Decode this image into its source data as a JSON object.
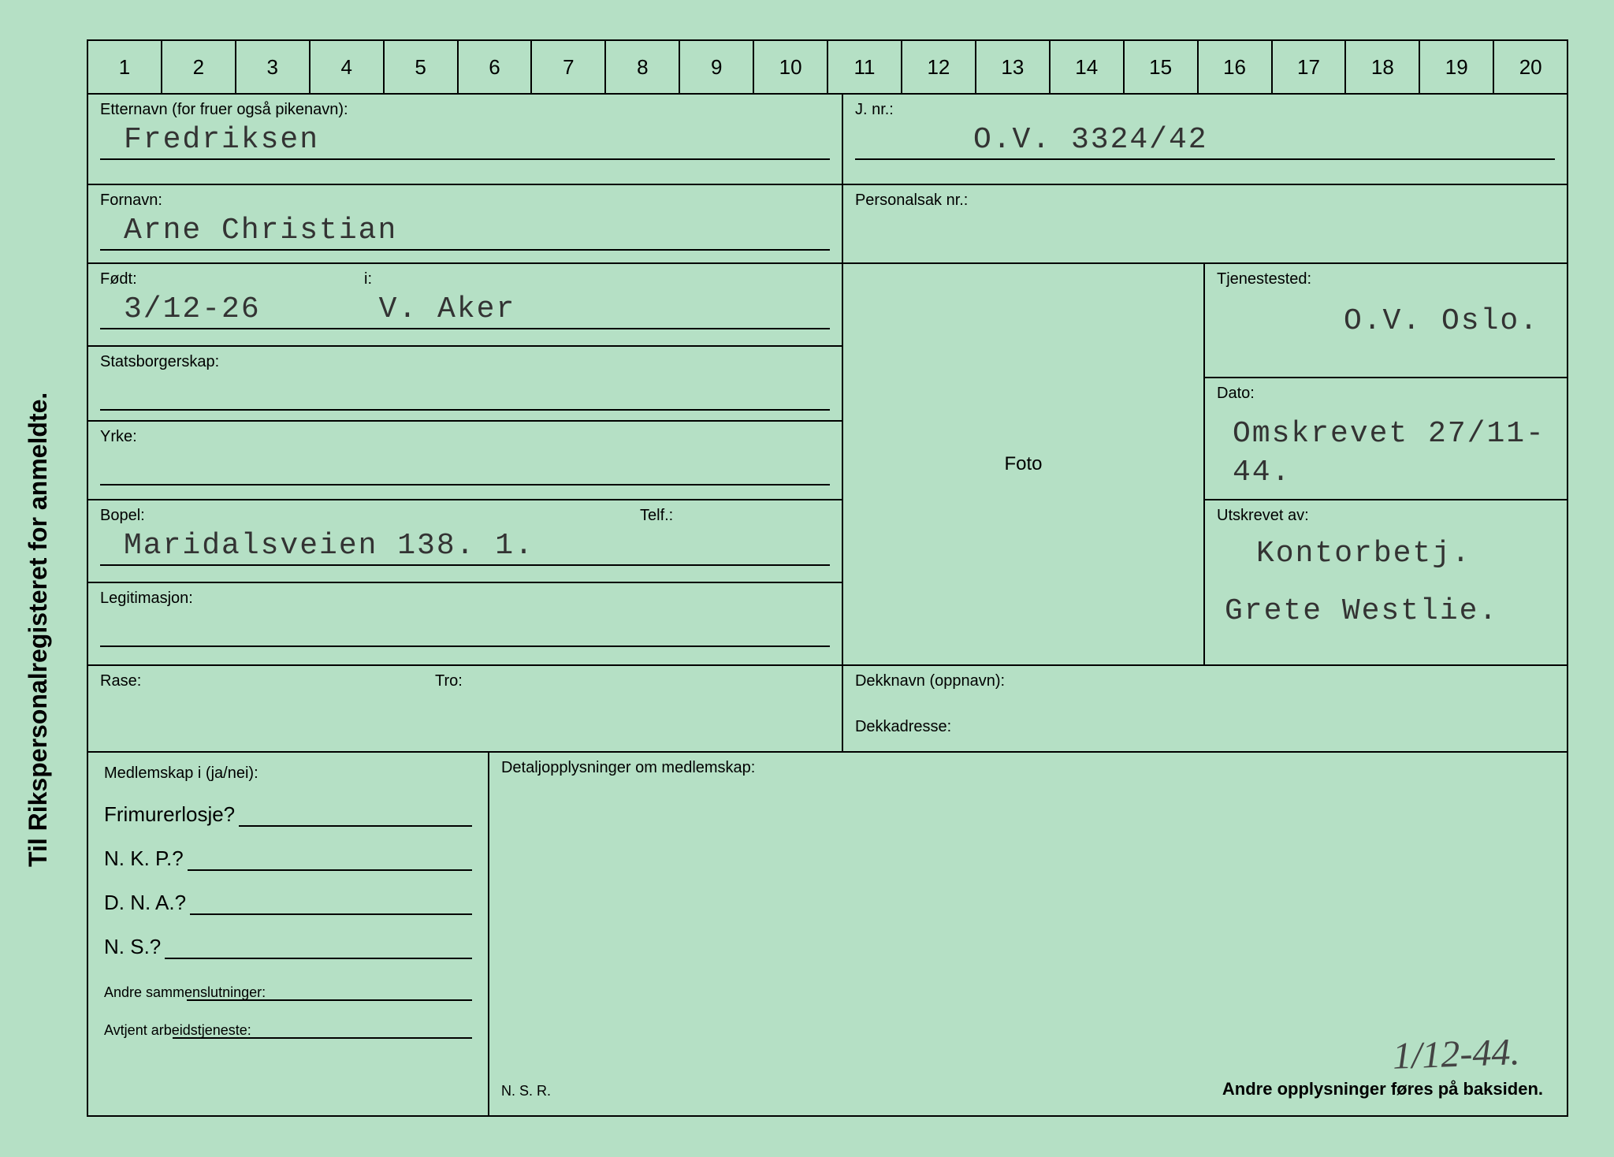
{
  "colors": {
    "background": "#b5e0c5",
    "border": "#000000",
    "text": "#000000",
    "typewriter": "#333333"
  },
  "vertical_title": "Til Rikspersonalregisteret for anmeldte.",
  "numbers": [
    "1",
    "2",
    "3",
    "4",
    "5",
    "6",
    "7",
    "8",
    "9",
    "10",
    "11",
    "12",
    "13",
    "14",
    "15",
    "16",
    "17",
    "18",
    "19",
    "20"
  ],
  "fields": {
    "etternavn_label": "Etternavn (for fruer også pikenavn):",
    "etternavn_value": "Fredriksen",
    "jnr_label": "J. nr.:",
    "jnr_value": "O.V. 3324/42",
    "fornavn_label": "Fornavn:",
    "fornavn_value": "Arne Christian",
    "personalsak_label": "Personalsak nr.:",
    "fodt_label": "Født:",
    "fodt_value": "3/12-26",
    "i_label": "i:",
    "i_value": "V. Aker",
    "tjenestested_label": "Tjenestested:",
    "tjenestested_value": "O.V. Oslo.",
    "statsborgerskap_label": "Statsborgerskap:",
    "dato_label": "Dato:",
    "dato_value": "Omskrevet 27/11-44.",
    "yrke_label": "Yrke:",
    "foto_label": "Foto",
    "utskrevet_label": "Utskrevet av:",
    "utskrevet_value1": "Kontorbetj.",
    "utskrevet_value2": "Grete Westlie.",
    "bopel_label": "Bopel:",
    "bopel_value": "Maridalsveien 138. 1.",
    "telf_label": "Telf.:",
    "legitimasjon_label": "Legitimasjon:",
    "rase_label": "Rase:",
    "tro_label": "Tro:",
    "dekknavn_label": "Dekknavn (oppnavn):",
    "dekkadresse_label": "Dekkadresse:",
    "medlemskap_label": "Medlemskap i (ja/nei):",
    "detalj_label": "Detaljopplysninger om medlemskap:",
    "frimurer": "Frimurerlosje?",
    "nkp": "N. K. P.?",
    "dna": "D. N. A.?",
    "ns": "N. S.?",
    "andre_label": "Andre sammenslutninger:",
    "avtjent_label": "Avtjent arbeidstjeneste:",
    "nsr": "N. S. R.",
    "footer": "Andre opplysninger føres på baksiden.",
    "handwritten": "1/12-44."
  }
}
